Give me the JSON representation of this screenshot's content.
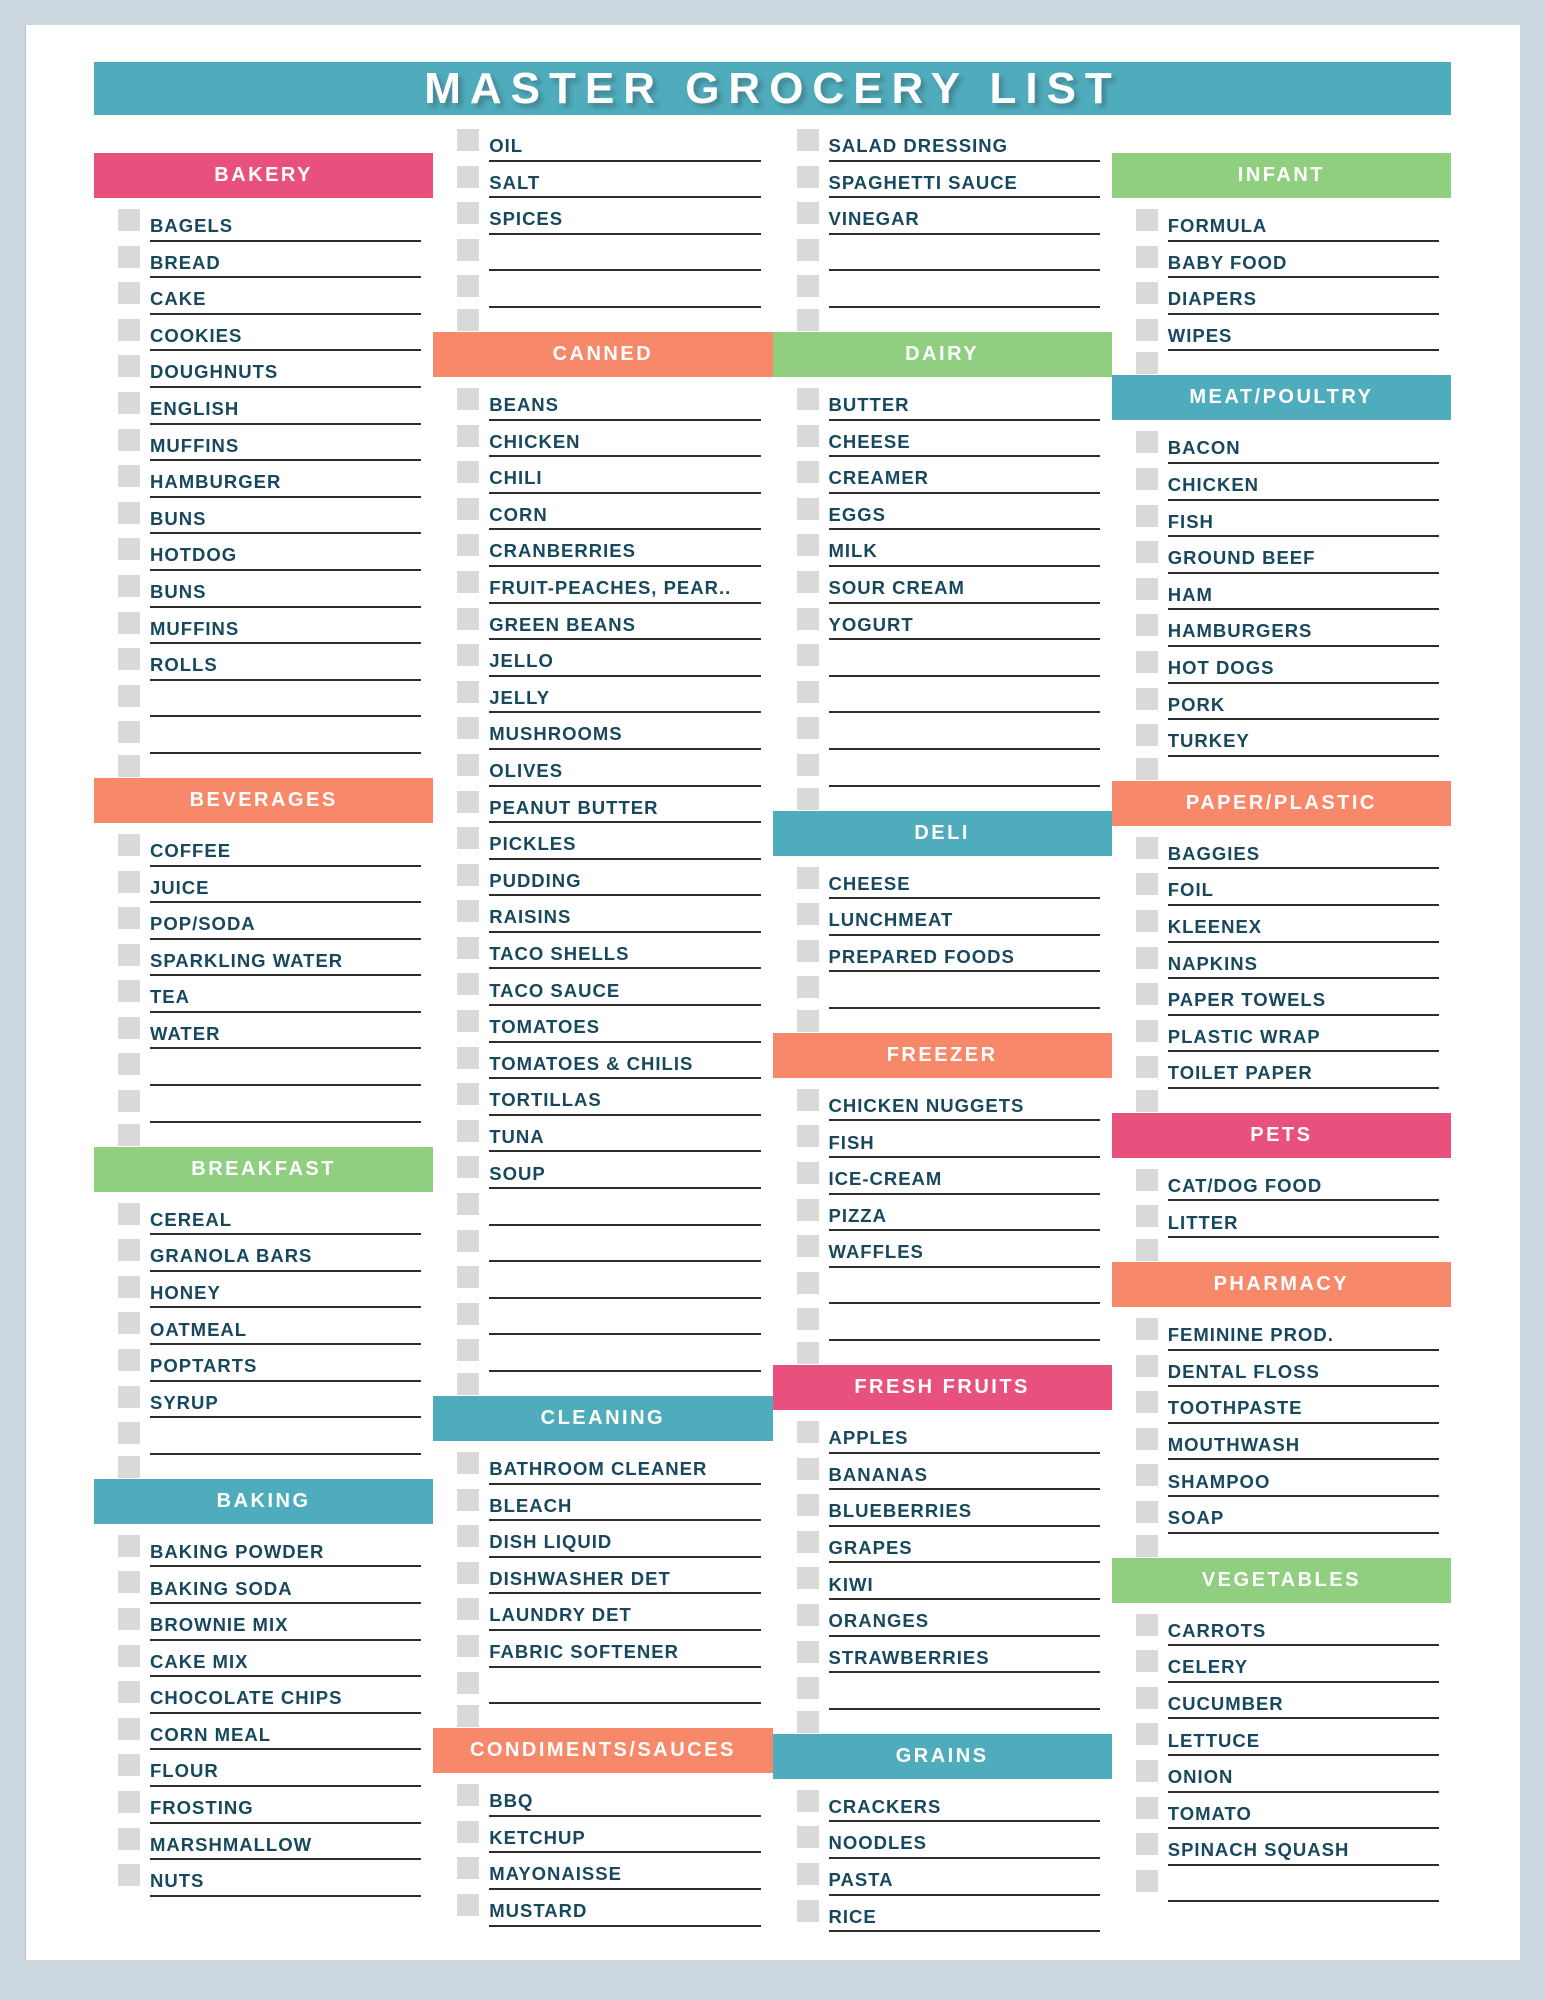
{
  "title": "MASTER GROCERY LIST",
  "palette": {
    "teal": "#4FACBC",
    "pink": "#E8517E",
    "orange": "#F8886A",
    "green": "#90CE80",
    "ink": "#17485D",
    "checkbox_gray": "#D9D9D9",
    "line": "#2D2D2D",
    "frame": "#CCD6DE"
  },
  "columns": [
    {
      "sections": [
        {
          "title": "BAKERY",
          "color": "pink",
          "top": true,
          "items": [
            "BAGELS",
            "BREAD",
            "CAKE",
            "COOKIES",
            "DOUGHNUTS",
            "ENGLISH",
            "MUFFINS",
            "HAMBURGER",
            "BUNS",
            "HOTDOG",
            "BUNS",
            "MUFFINS",
            "ROLLS",
            "",
            ""
          ]
        },
        {
          "title": "BEVERAGES",
          "color": "orange",
          "items": [
            "COFFEE",
            "JUICE",
            "POP/SODA",
            "SPARKLING WATER",
            "TEA",
            "WATER",
            "",
            ""
          ]
        },
        {
          "title": "BREAKFAST",
          "color": "green",
          "items": [
            "CEREAL",
            "GRANOLA BARS",
            "HONEY",
            "OATMEAL",
            "POPTARTS",
            "SYRUP",
            ""
          ]
        },
        {
          "title": "BAKING",
          "color": "teal",
          "items": [
            "BAKING POWDER",
            "BAKING SODA",
            "BROWNIE MIX",
            "CAKE MIX",
            "CHOCOLATE CHIPS",
            "CORN MEAL",
            "FLOUR",
            "FROSTING",
            "MARSHMALLOW",
            "NUTS"
          ]
        }
      ]
    },
    {
      "sections": [
        {
          "title": null,
          "items": [
            "OIL",
            "SALT",
            "SPICES",
            "",
            ""
          ]
        },
        {
          "title": "CANNED",
          "color": "orange",
          "items": [
            "BEANS",
            "CHICKEN",
            "CHILI",
            "CORN",
            "CRANBERRIES",
            "FRUIT-PEACHES, PEAR..",
            "GREEN BEANS",
            "JELLO",
            "JELLY",
            "MUSHROOMS",
            "OLIVES",
            "PEANUT BUTTER",
            "PICKLES",
            "PUDDING",
            "RAISINS",
            "TACO SHELLS",
            "TACO SAUCE",
            "TOMATOES",
            "TOMATOES & CHILIS",
            "TORTILLAS",
            "TUNA",
            "SOUP",
            "",
            "",
            "",
            "",
            ""
          ]
        },
        {
          "title": "CLEANING",
          "color": "teal",
          "items": [
            "BATHROOM CLEANER",
            "BLEACH",
            "DISH LIQUID",
            "DISHWASHER DET",
            "LAUNDRY DET",
            "FABRIC SOFTENER",
            ""
          ]
        },
        {
          "title": "CONDIMENTS/SAUCES",
          "color": "orange",
          "items": [
            "BBQ",
            "KETCHUP",
            "MAYONAISSE",
            "MUSTARD"
          ]
        }
      ]
    },
    {
      "sections": [
        {
          "title": null,
          "items": [
            "SALAD DRESSING",
            "SPAGHETTI SAUCE",
            "VINEGAR",
            "",
            ""
          ]
        },
        {
          "title": "DAIRY",
          "color": "green",
          "items": [
            "BUTTER",
            "CHEESE",
            "CREAMER",
            "EGGS",
            "MILK",
            "SOUR CREAM",
            "YOGURT",
            "",
            "",
            "",
            ""
          ]
        },
        {
          "title": "DELI",
          "color": "teal",
          "items": [
            "CHEESE",
            "LUNCHMEAT",
            "PREPARED FOODS",
            ""
          ]
        },
        {
          "title": "FREEZER",
          "color": "orange",
          "items": [
            "CHICKEN NUGGETS",
            "FISH",
            "ICE-CREAM",
            "PIZZA",
            "WAFFLES",
            "",
            ""
          ]
        },
        {
          "title": "FRESH FRUITS",
          "color": "pink",
          "items": [
            "APPLES",
            "BANANAS",
            "BLUEBERRIES",
            "GRAPES",
            "KIWI",
            "ORANGES",
            "STRAWBERRIES",
            ""
          ]
        },
        {
          "title": "GRAINS",
          "color": "teal",
          "items": [
            "CRACKERS",
            "NOODLES",
            "PASTA",
            "RICE"
          ]
        }
      ]
    },
    {
      "sections": [
        {
          "title": "INFANT",
          "color": "green",
          "top": true,
          "items": [
            "FORMULA",
            "BABY FOOD",
            "DIAPERS",
            "WIPES"
          ]
        },
        {
          "title": "MEAT/POULTRY",
          "color": "teal",
          "items": [
            "BACON",
            "CHICKEN",
            "FISH",
            "GROUND BEEF",
            "HAM",
            "HAMBURGERS",
            "HOT DOGS",
            "PORK",
            "TURKEY"
          ]
        },
        {
          "title": "PAPER/PLASTIC",
          "color": "orange",
          "items": [
            "BAGGIES",
            "FOIL",
            "KLEENEX",
            "NAPKINS",
            "PAPER TOWELS",
            "PLASTIC WRAP",
            "TOILET PAPER"
          ]
        },
        {
          "title": "PETS",
          "color": "pink",
          "items": [
            "CAT/DOG FOOD",
            "LITTER"
          ]
        },
        {
          "title": "PHARMACY",
          "color": "orange",
          "items": [
            "FEMININE PROD.",
            "DENTAL FLOSS",
            "TOOTHPASTE",
            "MOUTHWASH",
            "SHAMPOO",
            "SOAP"
          ]
        },
        {
          "title": "VEGETABLES",
          "color": "green",
          "items": [
            "CARROTS",
            "CELERY",
            "CUCUMBER",
            "LETTUCE",
            "ONION",
            "TOMATO",
            "SPINACH SQUASH",
            ""
          ]
        }
      ]
    }
  ]
}
